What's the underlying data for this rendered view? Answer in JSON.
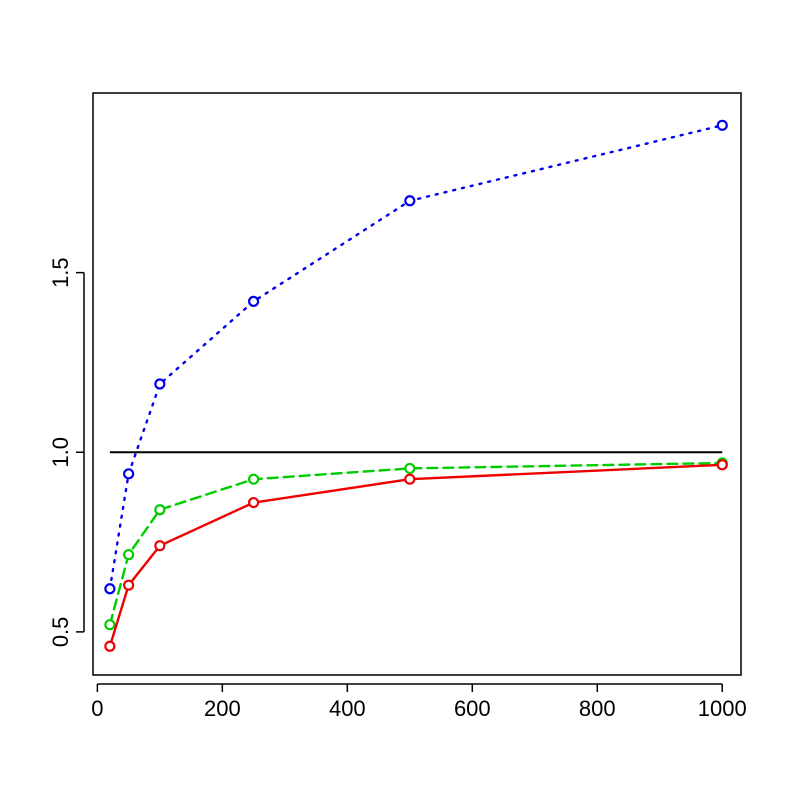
{
  "chart_data": {
    "type": "line",
    "title": "",
    "xlabel": "",
    "ylabel": "",
    "xlim": [
      -7,
      1030
    ],
    "ylim": [
      0.38,
      2.0
    ],
    "x_ticks": [
      0,
      200,
      400,
      600,
      800,
      1000
    ],
    "y_ticks": [
      0.5,
      1.0,
      1.5
    ],
    "x_tick_labels": [
      "0",
      "200",
      "400",
      "600",
      "800",
      "1000"
    ],
    "y_tick_labels": [
      "0.5",
      "1.0",
      "1.5"
    ],
    "x": [
      20,
      50,
      100,
      250,
      500,
      1000
    ],
    "reference_line": {
      "y": 1.0,
      "x_from": 20,
      "x_to": 1000,
      "color": "#000000"
    },
    "series": [
      {
        "values": [
          0.62,
          0.94,
          1.19,
          1.42,
          1.7,
          1.91
        ],
        "color": "#0000ee",
        "dash": "dotted",
        "marker": "open-circle"
      },
      {
        "values": [
          0.52,
          0.715,
          0.84,
          0.925,
          0.955,
          0.97
        ],
        "color": "#00cd00",
        "dash": "dashed",
        "marker": "open-circle"
      },
      {
        "values": [
          0.46,
          0.63,
          0.74,
          0.86,
          0.925,
          0.965
        ],
        "color": "#ee0000",
        "dash": "solid",
        "marker": "open-circle"
      }
    ],
    "grid": false,
    "legend": "none"
  }
}
